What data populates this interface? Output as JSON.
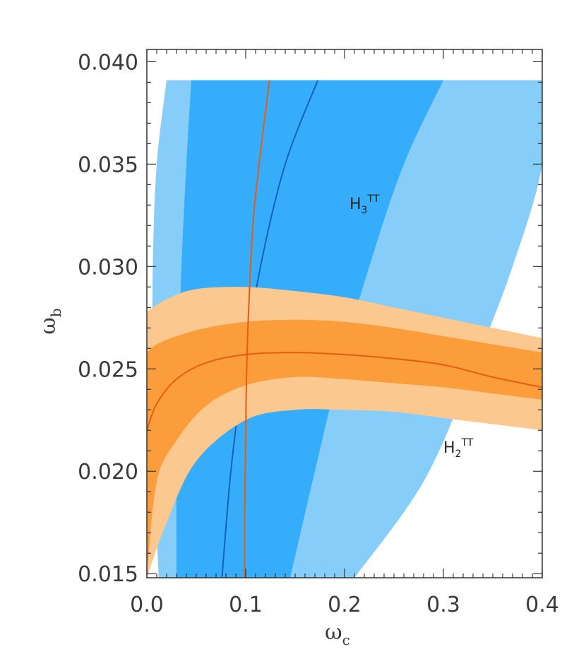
{
  "chart_data": {
    "type": "area",
    "xlabel": "ω",
    "xlabel_sub": "c",
    "ylabel": "ω",
    "ylabel_sub": "b",
    "xlim": [
      0.0,
      0.4
    ],
    "ylim": [
      0.0148,
      0.0406
    ],
    "xticks": [
      "0.0",
      "0.1",
      "0.2",
      "0.3",
      "0.4"
    ],
    "yticks": [
      "0.015",
      "0.020",
      "0.025",
      "0.030",
      "0.035",
      "0.040"
    ],
    "grid": false,
    "annotations": [
      {
        "text": "H",
        "sub": "3",
        "sup": "TT",
        "x": 0.205,
        "y": 0.0328
      },
      {
        "text": "H",
        "sub": "2",
        "sup": "TT",
        "x": 0.3,
        "y": 0.0209
      }
    ],
    "colors": {
      "blue_outer": "#87cdfa",
      "blue_inner": "#36adfa",
      "blue_line": "#1463b4",
      "orange_outer": "#fbc88f",
      "orange_inner": "#fc9d3c",
      "orange_line": "#e55c12"
    },
    "series": [
      {
        "name": "H3",
        "kind": "band",
        "role": "outer",
        "y": [
          0.0148,
          0.0195,
          0.025,
          0.03,
          0.035,
          0.0391
        ],
        "x_low": [
          0.012,
          0.008,
          0.006,
          0.006,
          0.01,
          0.02
        ],
        "x_high": [
          0.21,
          0.28,
          0.33,
          0.37,
          0.4,
          0.4
        ]
      },
      {
        "name": "H3",
        "kind": "band",
        "role": "inner",
        "y": [
          0.0148,
          0.02,
          0.025,
          0.03,
          0.035,
          0.0391
        ],
        "x_low": [
          0.03,
          0.03,
          0.032,
          0.035,
          0.04,
          0.045
        ],
        "x_high": [
          0.145,
          0.17,
          0.195,
          0.225,
          0.26,
          0.3
        ]
      },
      {
        "name": "H3",
        "kind": "line",
        "y": [
          0.0148,
          0.02,
          0.025,
          0.03,
          0.035,
          0.0391
        ],
        "x": [
          0.076,
          0.085,
          0.098,
          0.115,
          0.14,
          0.173
        ]
      },
      {
        "name": "H2",
        "kind": "band",
        "role": "outer",
        "x": [
          0.0,
          0.02,
          0.05,
          0.1,
          0.15,
          0.2,
          0.25,
          0.3,
          0.35,
          0.4
        ],
        "y_low": [
          0.0148,
          0.0175,
          0.0205,
          0.0225,
          0.023,
          0.023,
          0.0229,
          0.0226,
          0.0223,
          0.022
        ],
        "y_high": [
          0.0278,
          0.0284,
          0.0289,
          0.029,
          0.0288,
          0.0285,
          0.028,
          0.0275,
          0.027,
          0.0265
        ]
      },
      {
        "name": "H2",
        "kind": "band",
        "role": "inner",
        "x": [
          0.0,
          0.01,
          0.03,
          0.06,
          0.1,
          0.15,
          0.2,
          0.25,
          0.3,
          0.35,
          0.4
        ],
        "y_low": [
          0.0148,
          0.0195,
          0.0215,
          0.0232,
          0.0242,
          0.0246,
          0.0245,
          0.0243,
          0.0241,
          0.0238,
          0.0235
        ],
        "y_high": [
          0.0258,
          0.0262,
          0.0266,
          0.027,
          0.0273,
          0.0274,
          0.0273,
          0.027,
          0.0266,
          0.0262,
          0.0258
        ]
      },
      {
        "name": "H2",
        "kind": "line",
        "x": [
          0.0,
          0.01,
          0.03,
          0.06,
          0.1,
          0.15,
          0.2,
          0.25,
          0.3,
          0.35,
          0.4
        ],
        "y": [
          0.022,
          0.0233,
          0.0245,
          0.0253,
          0.0257,
          0.0258,
          0.0257,
          0.0255,
          0.0252,
          0.0246,
          0.0241
        ]
      },
      {
        "name": "H2",
        "kind": "line",
        "y": [
          0.0148,
          0.018,
          0.0215,
          0.025,
          0.029,
          0.033,
          0.0391
        ],
        "x": [
          0.099,
          0.099,
          0.1,
          0.101,
          0.104,
          0.109,
          0.124
        ]
      }
    ]
  }
}
